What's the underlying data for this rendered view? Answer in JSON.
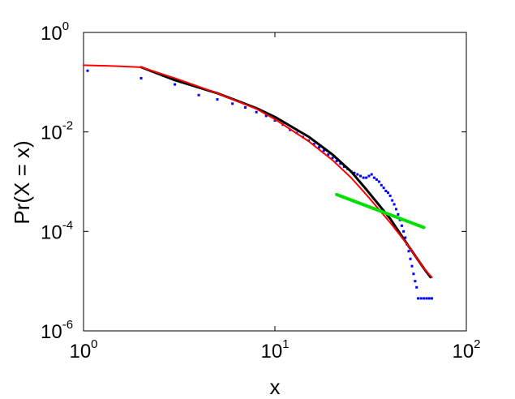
{
  "chart_data": {
    "type": "scatter",
    "title": "",
    "xlabel": "x",
    "ylabel": "Pr(X = x)",
    "xscale": "log",
    "yscale": "log",
    "xlim": [
      1,
      100
    ],
    "ylim": [
      1e-06,
      1
    ],
    "grid": false,
    "x_ticks": [
      {
        "base": "10",
        "exp": "0",
        "value": 1
      },
      {
        "base": "10",
        "exp": "1",
        "value": 10
      },
      {
        "base": "10",
        "exp": "2",
        "value": 100
      }
    ],
    "y_ticks": [
      {
        "base": "10",
        "exp": "0",
        "value": 1
      },
      {
        "base": "10",
        "exp": "-2",
        "value": 0.01
      },
      {
        "base": "10",
        "exp": "-4",
        "value": 0.0001
      },
      {
        "base": "10",
        "exp": "-6",
        "value": 1e-06
      }
    ],
    "series": [
      {
        "style": "points",
        "color": "#0000ff",
        "points": [
          [
            1.05,
            0.17
          ],
          [
            2.0,
            0.12
          ],
          [
            3.0,
            0.09
          ],
          [
            4.0,
            0.055
          ],
          [
            5.0,
            0.045
          ],
          [
            6.0,
            0.037
          ],
          [
            7.0,
            0.031
          ],
          [
            8.0,
            0.025
          ],
          [
            9.0,
            0.021
          ],
          [
            10.0,
            0.017
          ],
          [
            11.0,
            0.014
          ],
          [
            12.0,
            0.011
          ],
          [
            13.0,
            0.0095
          ],
          [
            14.0,
            0.0079
          ],
          [
            15.0,
            0.0067
          ],
          [
            16.0,
            0.0057
          ],
          [
            17.0,
            0.0049
          ],
          [
            18.0,
            0.0042
          ],
          [
            19.0,
            0.0035
          ],
          [
            20.0,
            0.003
          ],
          [
            21.0,
            0.0026
          ],
          [
            22.0,
            0.0023
          ],
          [
            23.0,
            0.002
          ],
          [
            24.0,
            0.0018
          ],
          [
            25.0,
            0.0016
          ],
          [
            26.0,
            0.0015
          ],
          [
            27.0,
            0.0014
          ],
          [
            28.0,
            0.0013
          ],
          [
            29.0,
            0.0012
          ],
          [
            30.0,
            0.0012
          ],
          [
            31.0,
            0.0013
          ],
          [
            32.0,
            0.0014
          ],
          [
            33.0,
            0.0012
          ],
          [
            34.0,
            0.0011
          ],
          [
            35.0,
            0.001
          ],
          [
            36.0,
            0.00085
          ],
          [
            37.0,
            0.00075
          ],
          [
            38.0,
            0.00065
          ],
          [
            39.0,
            0.0006
          ],
          [
            40.0,
            0.00052
          ],
          [
            41.0,
            0.00042
          ],
          [
            42.0,
            0.00035
          ],
          [
            43.0,
            0.00028
          ],
          [
            44.0,
            0.00022
          ],
          [
            45.0,
            0.00017
          ],
          [
            46.0,
            0.00013
          ],
          [
            47.0,
            0.0001
          ],
          [
            48.0,
            7.5e-05
          ],
          [
            49.0,
            5.5e-05
          ],
          [
            50.0,
            4e-05
          ],
          [
            51.0,
            2.8e-05
          ],
          [
            52.0,
            2e-05
          ],
          [
            53.0,
            1.4e-05
          ],
          [
            54.0,
            1e-05
          ],
          [
            55.0,
            7.5e-06
          ],
          [
            56.0,
            4.5e-06
          ],
          [
            58.0,
            4.5e-06
          ],
          [
            60.0,
            4.5e-06
          ],
          [
            62.0,
            4.5e-06
          ],
          [
            64.0,
            4.5e-06
          ],
          [
            66.0,
            4.5e-06
          ]
        ]
      },
      {
        "style": "line",
        "color": "#000000",
        "width": 3,
        "points": [
          [
            2.0,
            0.2
          ],
          [
            3.0,
            0.11
          ],
          [
            5.0,
            0.06
          ],
          [
            8.0,
            0.03
          ],
          [
            10.0,
            0.02
          ],
          [
            15.0,
            0.008
          ],
          [
            20.0,
            0.0035
          ],
          [
            25.0,
            0.0016
          ],
          [
            30.0,
            0.0007
          ],
          [
            40.0,
            0.00018
          ],
          [
            50.0,
            5e-05
          ],
          [
            60.0,
            1.8e-05
          ],
          [
            65.0,
            1.2e-05
          ]
        ]
      },
      {
        "style": "line",
        "color": "#ff0000",
        "width": 2,
        "points": [
          [
            1.0,
            0.22
          ],
          [
            1.5,
            0.21
          ],
          [
            2.0,
            0.2
          ],
          [
            3.0,
            0.12
          ],
          [
            5.0,
            0.06
          ],
          [
            8.0,
            0.029
          ],
          [
            10.0,
            0.018
          ],
          [
            15.0,
            0.0065
          ],
          [
            20.0,
            0.0027
          ],
          [
            25.0,
            0.0012
          ],
          [
            30.0,
            0.00055
          ],
          [
            40.0,
            0.00015
          ],
          [
            50.0,
            5e-05
          ],
          [
            60.0,
            1.8e-05
          ],
          [
            66.0,
            1.2e-05
          ]
        ]
      },
      {
        "style": "line",
        "color": "#00e000",
        "width": 4,
        "points": [
          [
            21.0,
            0.00055
          ],
          [
            60.0,
            0.00012
          ]
        ]
      }
    ]
  }
}
